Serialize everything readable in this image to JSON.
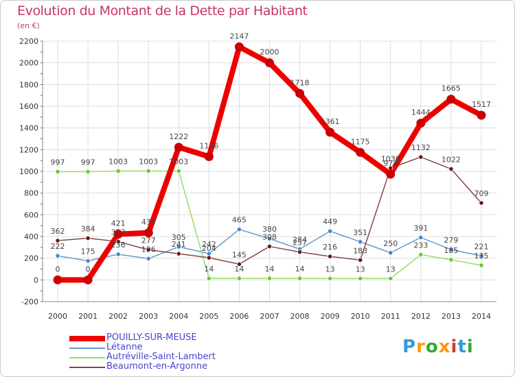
{
  "chart_data": {
    "type": "line",
    "title": "Evolution du Montant de la Dette par Habitant",
    "subtitle": "(en €)",
    "x": [
      2000,
      2001,
      2002,
      2003,
      2004,
      2005,
      2006,
      2007,
      2008,
      2009,
      2010,
      2011,
      2012,
      2013,
      2014
    ],
    "ylim": [
      -200,
      2200
    ],
    "yticks": [
      -200,
      0,
      200,
      400,
      600,
      800,
      1000,
      1200,
      1400,
      1600,
      1800,
      2000,
      2200
    ],
    "grid": true,
    "legend_position": "bottom-left",
    "series": [
      {
        "name": "POUILLY-SUR-MEUSE",
        "color": "#ee0000",
        "marker": "#cc0000",
        "width": 8,
        "values": [
          0,
          0,
          421,
          434,
          1222,
          1136,
          2147,
          2000,
          1718,
          1361,
          1175,
          974,
          1444,
          1665,
          1517
        ],
        "labels": [
          "0",
          "0",
          "421",
          "434",
          "1222",
          "1136",
          "2147",
          "2000",
          "1718",
          "1361",
          "1175",
          "974",
          "1444",
          "1665",
          "1517"
        ]
      },
      {
        "name": "Létanne",
        "color": "#6699cc",
        "marker": "#4488cc",
        "width": 1.5,
        "values": [
          222,
          175,
          236,
          196,
          305,
          242,
          465,
          380,
          284,
          449,
          351,
          250,
          391,
          279,
          221
        ],
        "labels": [
          "222",
          "175",
          "236",
          "196",
          "305",
          "242",
          "465",
          "380",
          "284",
          "449",
          "351",
          "250",
          "391",
          "279",
          "221"
        ]
      },
      {
        "name": "Autréville-Saint-Lambert",
        "color": "#99dd66",
        "marker": "#66cc33",
        "width": 1.5,
        "values": [
          997,
          997,
          1003,
          1003,
          1003,
          14,
          14,
          14,
          14,
          13,
          13,
          13,
          233,
          185,
          135
        ],
        "labels": [
          "997",
          "997",
          "1003",
          "1003",
          "1003",
          "14",
          "14",
          "14",
          "14",
          "13",
          "13",
          "13",
          "233",
          "185",
          "135"
        ]
      },
      {
        "name": "Beaumont-en-Argonne",
        "color": "#884444",
        "marker": "#661a1a",
        "width": 1.5,
        "values": [
          362,
          384,
          353,
          277,
          241,
          204,
          145,
          308,
          257,
          216,
          183,
          1030,
          1132,
          1022,
          709
        ],
        "labels": [
          "362",
          "384",
          "353",
          "277",
          "241",
          "204",
          "145",
          "308",
          "257",
          "216",
          "183",
          "1030",
          "1132",
          "1022",
          "709"
        ]
      }
    ]
  },
  "logo": {
    "letters": [
      "P",
      "r",
      "o",
      "x",
      "i",
      "t",
      "i"
    ],
    "colors": [
      "#3399dd",
      "#ff9900",
      "#33aa33",
      "#ff9900",
      "#dd3333",
      "#3399dd",
      "#33aa33"
    ]
  }
}
